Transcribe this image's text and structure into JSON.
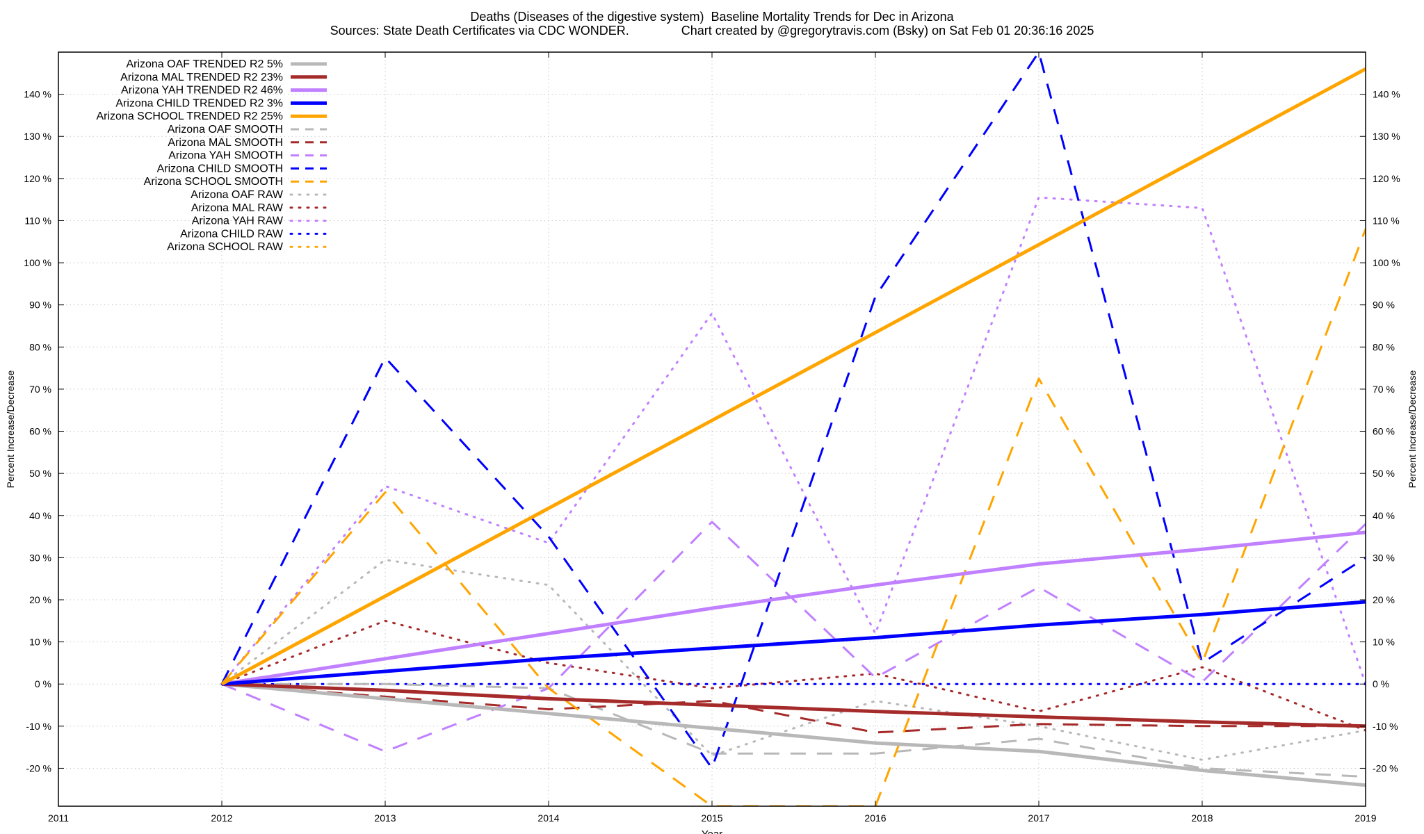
{
  "title_line1": "Deaths (Diseases of the digestive system)  Baseline Mortality Trends for Dec in Arizona",
  "title_line2": "Sources: State Death Certificates via CDC WONDER.               Chart created by @gregorytravis.com (Bsky) on Sat Feb 01 20:36:16 2025",
  "chart_data": {
    "type": "line",
    "xlabel": "Year",
    "ylabel": "Percent Increase/Decrease",
    "y2label": "Percent Increase/Decrease",
    "xlim": [
      2011,
      2019
    ],
    "ylim": [
      -29,
      150
    ],
    "grid": true,
    "legend_position": "top-left",
    "x_ticks": [
      2011,
      2012,
      2013,
      2014,
      2015,
      2016,
      2017,
      2018,
      2019
    ],
    "y_ticks": [
      -20,
      -10,
      0,
      10,
      20,
      30,
      40,
      50,
      60,
      70,
      80,
      90,
      100,
      110,
      120,
      130,
      140
    ],
    "y_tick_suffix": " %",
    "series": [
      {
        "name": "Arizona OAF TRENDED R2  5%",
        "style": "solid",
        "color": "#b8b8b8",
        "x": [
          2012,
          2013,
          2014,
          2015,
          2016,
          2017,
          2018,
          2019
        ],
        "values": [
          0,
          -3.5,
          -7,
          -10.5,
          -14,
          -16,
          -20.5,
          -24
        ]
      },
      {
        "name": "Arizona MAL TRENDED R2  23%",
        "style": "solid",
        "color": "#a52a2a",
        "x": [
          2012,
          2013,
          2014,
          2015,
          2016,
          2017,
          2018,
          2019
        ],
        "values": [
          0,
          -1.5,
          -3.5,
          -5,
          -6.5,
          -7.8,
          -9,
          -10
        ]
      },
      {
        "name": "Arizona YAH TRENDED R2  46%",
        "style": "solid",
        "color": "#c080ff",
        "x": [
          2012,
          2013,
          2014,
          2015,
          2016,
          2017,
          2018,
          2019
        ],
        "values": [
          0,
          6,
          12,
          18,
          23.5,
          28.5,
          32,
          36
        ]
      },
      {
        "name": "Arizona CHILD TRENDED R2  3%",
        "style": "solid",
        "color": "#0000ff",
        "x": [
          2012,
          2013,
          2014,
          2015,
          2016,
          2017,
          2018,
          2019
        ],
        "values": [
          0,
          3,
          6,
          8.5,
          11,
          14,
          16.5,
          19.5
        ]
      },
      {
        "name": "Arizona SCHOOL TRENDED R2  25%",
        "style": "solid",
        "color": "#ffa500",
        "x": [
          2012,
          2019
        ],
        "values": [
          0,
          146
        ]
      },
      {
        "name": "Arizona OAF SMOOTH",
        "style": "dash",
        "color": "#b8b8b8",
        "x": [
          2012,
          2013,
          2014,
          2015,
          2016,
          2017,
          2018,
          2019
        ],
        "values": [
          0,
          0,
          -1,
          -16.5,
          -16.5,
          -13,
          -20,
          -22
        ]
      },
      {
        "name": "Arizona MAL SMOOTH",
        "style": "dash",
        "color": "#a52a2a",
        "x": [
          2012,
          2013,
          2014,
          2015,
          2016,
          2017,
          2018,
          2019
        ],
        "values": [
          0,
          -3,
          -6,
          -4,
          -11.5,
          -9.5,
          -10,
          -10
        ]
      },
      {
        "name": "Arizona YAH SMOOTH",
        "style": "dash",
        "color": "#c080ff",
        "x": [
          2012,
          2013,
          2014,
          2015,
          2016,
          2017,
          2018,
          2019
        ],
        "values": [
          0,
          -16,
          -1,
          38.5,
          1.5,
          23,
          0.5,
          38
        ]
      },
      {
        "name": "Arizona CHILD SMOOTH",
        "style": "dash",
        "color": "#0000ff",
        "x": [
          2012,
          2013,
          2014,
          2015,
          2016,
          2017,
          2018,
          2019
        ],
        "values": [
          0,
          77.5,
          35,
          -20,
          92,
          150,
          5,
          30
        ]
      },
      {
        "name": "Arizona SCHOOL SMOOTH",
        "style": "dash",
        "color": "#ffa500",
        "x": [
          2012,
          2013,
          2014,
          2015,
          2016,
          2017,
          2018,
          2019
        ],
        "values": [
          0,
          45.5,
          -1,
          -29,
          -29,
          72.5,
          5,
          108
        ]
      },
      {
        "name": "Arizona OAF RAW",
        "style": "dot",
        "color": "#b8b8b8",
        "x": [
          2012,
          2013,
          2014,
          2015,
          2016,
          2017,
          2018,
          2019
        ],
        "values": [
          0,
          29.5,
          23.5,
          -17,
          -4,
          -10,
          -18,
          -11
        ]
      },
      {
        "name": "Arizona MAL RAW",
        "style": "dot",
        "color": "#a52a2a",
        "x": [
          2012,
          2013,
          2014,
          2015,
          2016,
          2017,
          2018,
          2019
        ],
        "values": [
          0,
          15,
          5,
          -1,
          2.5,
          -6.5,
          4,
          -11
        ]
      },
      {
        "name": "Arizona YAH RAW",
        "style": "dot",
        "color": "#c080ff",
        "x": [
          2012,
          2013,
          2014,
          2015,
          2016,
          2017,
          2018,
          2019
        ],
        "values": [
          0,
          47,
          33.5,
          88,
          12,
          115.5,
          113,
          0
        ]
      },
      {
        "name": "Arizona CHILD RAW",
        "style": "dot",
        "color": "#0000ff",
        "x": [
          2012,
          2019
        ],
        "values": [
          0,
          0
        ]
      },
      {
        "name": "Arizona SCHOOL RAW",
        "style": "dot",
        "color": "#ffa500",
        "x": [
          2012
        ],
        "values": [
          0
        ]
      }
    ]
  }
}
